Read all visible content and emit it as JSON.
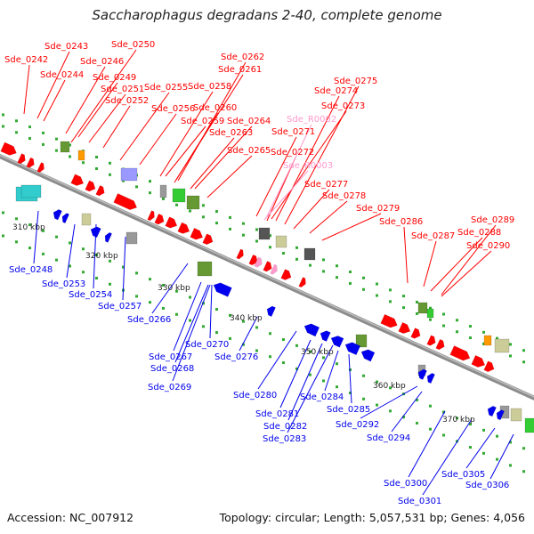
{
  "title": "Saccharophagus degradans 2-40, complete genome",
  "footer": {
    "accession_label": "Accession: NC_007912",
    "summary": "Topology: circular; Length: 5,057,531 bp; Genes: 4,056"
  },
  "colors": {
    "forward_gene": "#ff0000",
    "reverse_gene": "#0000ee",
    "rna_gene": "#ff99cc",
    "backbone": "#8c8c8c",
    "cog_green": "#33cc33",
    "cog_olive": "#669933",
    "cog_khaki": "#cccc99",
    "cog_orange": "#ff9900",
    "cog_grey": "#999999",
    "cog_dark": "#555555",
    "cog_purple": "#9999ff",
    "cog_cyan": "#33cccc"
  },
  "scale_ticks": [
    "310 kbp",
    "320 kbp",
    "330 kbp",
    "340 kbp",
    "350 kbp",
    "360 kbp",
    "370 kbp"
  ],
  "forward_labels": [
    "Sde_0242",
    "Sde_0243",
    "Sde_0244",
    "Sde_0246",
    "Sde_0249",
    "Sde_0250",
    "Sde_0251",
    "Sde_0252",
    "Sde_0255",
    "Sde_0256",
    "Sde_0258",
    "Sde_0259",
    "Sde_0260",
    "Sde_0261",
    "Sde_0262",
    "Sde_0263",
    "Sde_0264",
    "Sde_0265",
    "Sde_0271",
    "Sde_0272",
    "Sde_0273",
    "Sde_0274",
    "Sde_0275",
    "Sde_0277",
    "Sde_0278",
    "Sde_0279",
    "Sde_0286",
    "Sde_0287",
    "Sde_0288",
    "Sde_0289",
    "Sde_0290"
  ],
  "rna_labels": [
    "Sde_R0002",
    "Sde_R0003"
  ],
  "reverse_labels": [
    "Sde_0248",
    "Sde_0253",
    "Sde_0254",
    "Sde_0257",
    "Sde_0266",
    "Sde_0267",
    "Sde_0268",
    "Sde_0269",
    "Sde_0270",
    "Sde_0276",
    "Sde_0280",
    "Sde_0281",
    "Sde_0282",
    "Sde_0283",
    "Sde_0284",
    "Sde_0285",
    "Sde_0292",
    "Sde_0294",
    "Sde_0300",
    "Sde_0301",
    "Sde_0305",
    "Sde_0306"
  ]
}
